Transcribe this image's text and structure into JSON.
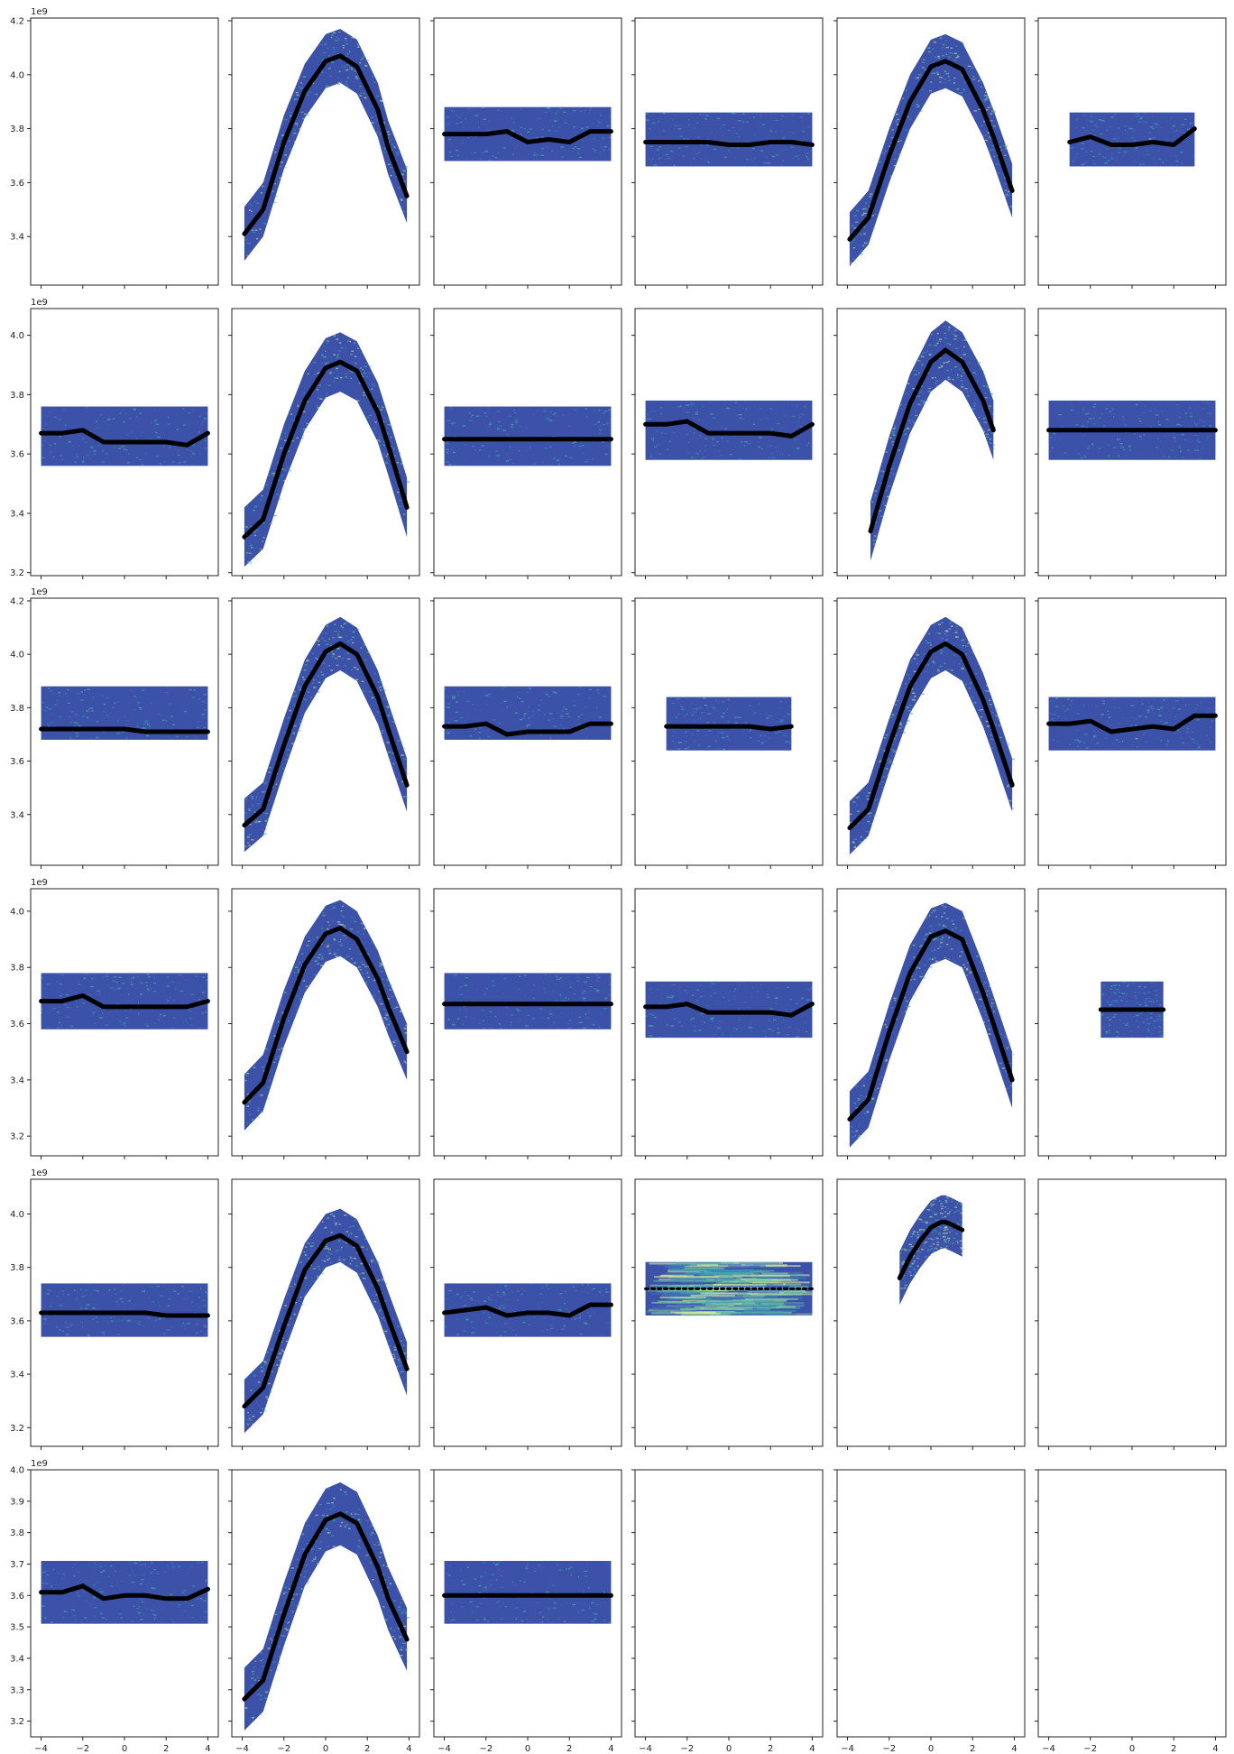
{
  "figure": {
    "colors": {
      "background": "#3c51a8",
      "noise": [
        "#4a66b4",
        "#3b90b8",
        "#48b0a8",
        "#88d0a0",
        "#d8ec9a"
      ],
      "ridge": "#000000",
      "axes": "#222222"
    }
  },
  "chart_data": {
    "type": "heatmap-grid",
    "rows": 6,
    "cols": 6,
    "xlim": [
      -4.5,
      4.5
    ],
    "xticks": [
      -4,
      -2,
      0,
      2,
      4
    ],
    "xtick_labels": [
      "−4",
      "−2",
      "0",
      "2",
      "4"
    ],
    "shared_x_labels_on_row": 5,
    "row_axes": [
      {
        "ylim": [
          3.22,
          4.21
        ],
        "yticks": [
          3.4,
          3.6,
          3.8,
          4.0,
          4.2
        ],
        "ytick_labels": [
          "3.4",
          "3.6",
          "3.8",
          "4.0",
          "4.2"
        ],
        "exponent": "1e9"
      },
      {
        "ylim": [
          3.19,
          4.09
        ],
        "yticks": [
          3.2,
          3.4,
          3.6,
          3.8,
          4.0
        ],
        "ytick_labels": [
          "3.2",
          "3.4",
          "3.6",
          "3.8",
          "4.0"
        ],
        "exponent": "1e9"
      },
      {
        "ylim": [
          3.21,
          4.21
        ],
        "yticks": [
          3.4,
          3.6,
          3.8,
          4.0,
          4.2
        ],
        "ytick_labels": [
          "3.4",
          "3.6",
          "3.8",
          "4.0",
          "4.2"
        ],
        "exponent": "1e9"
      },
      {
        "ylim": [
          3.13,
          4.08
        ],
        "yticks": [
          3.2,
          3.4,
          3.6,
          3.8,
          4.0
        ],
        "ytick_labels": [
          "3.2",
          "3.4",
          "3.6",
          "3.8",
          "4.0"
        ],
        "exponent": "1e9"
      },
      {
        "ylim": [
          3.13,
          4.13
        ],
        "yticks": [
          3.2,
          3.4,
          3.6,
          3.8,
          4.0
        ],
        "ytick_labels": [
          "3.2",
          "3.4",
          "3.6",
          "3.8",
          "4.0"
        ],
        "exponent": "1e9"
      },
      {
        "ylim": [
          3.15,
          4.0
        ],
        "yticks": [
          3.2,
          3.3,
          3.4,
          3.5,
          3.6,
          3.7,
          3.8,
          3.9,
          4.0
        ],
        "ytick_labels": [
          "3.2",
          "3.3",
          "3.4",
          "3.5",
          "3.6",
          "3.7",
          "3.8",
          "3.9",
          "4.0"
        ],
        "exponent": "1e9"
      }
    ],
    "panels": [
      {
        "row": 0,
        "col": 0,
        "kind": "empty"
      },
      {
        "row": 0,
        "col": 1,
        "kind": "arch",
        "x_range": [
          -4,
          4
        ],
        "peak": 4.07,
        "trough": 3.41,
        "band": 0.1,
        "ridge_x": [
          -3.9,
          -3,
          -2,
          -1,
          0,
          0.7,
          1.5,
          2.5,
          3,
          3.9
        ],
        "ridge_y": [
          3.41,
          3.5,
          3.75,
          3.94,
          4.05,
          4.07,
          4.03,
          3.87,
          3.73,
          3.55
        ]
      },
      {
        "row": 0,
        "col": 2,
        "kind": "band",
        "x_range": [
          -4,
          4
        ],
        "y_range": [
          3.68,
          3.88
        ],
        "ridge_x": [
          -4,
          -3,
          -2,
          -1,
          0,
          1,
          2,
          3,
          4
        ],
        "ridge_y": [
          3.78,
          3.78,
          3.78,
          3.79,
          3.75,
          3.76,
          3.75,
          3.79,
          3.79
        ]
      },
      {
        "row": 0,
        "col": 3,
        "kind": "band",
        "x_range": [
          -4,
          4
        ],
        "y_range": [
          3.66,
          3.86
        ],
        "ridge_x": [
          -4,
          -3,
          -2,
          -1,
          0,
          1,
          2,
          3,
          4
        ],
        "ridge_y": [
          3.75,
          3.75,
          3.75,
          3.75,
          3.74,
          3.74,
          3.75,
          3.75,
          3.74
        ]
      },
      {
        "row": 0,
        "col": 4,
        "kind": "arch",
        "x_range": [
          -4,
          4
        ],
        "peak": 4.05,
        "trough": 3.39,
        "band": 0.1,
        "ridge_x": [
          -3.9,
          -3,
          -2,
          -1,
          0,
          0.7,
          1.5,
          2.5,
          3,
          3.9
        ],
        "ridge_y": [
          3.39,
          3.47,
          3.7,
          3.9,
          4.03,
          4.05,
          4.02,
          3.87,
          3.77,
          3.57
        ]
      },
      {
        "row": 0,
        "col": 5,
        "kind": "band",
        "x_range": [
          -3,
          3
        ],
        "y_range": [
          3.66,
          3.86
        ],
        "ridge_x": [
          -3,
          -2,
          -1,
          0,
          1,
          2,
          3
        ],
        "ridge_y": [
          3.75,
          3.77,
          3.74,
          3.74,
          3.75,
          3.74,
          3.8
        ]
      },
      {
        "row": 1,
        "col": 0,
        "kind": "band",
        "x_range": [
          -4,
          4
        ],
        "y_range": [
          3.56,
          3.76
        ],
        "ridge_x": [
          -4,
          -3,
          -2,
          -1,
          0,
          1,
          2,
          3,
          4
        ],
        "ridge_y": [
          3.67,
          3.67,
          3.68,
          3.64,
          3.64,
          3.64,
          3.64,
          3.63,
          3.67
        ]
      },
      {
        "row": 1,
        "col": 1,
        "kind": "arch",
        "x_range": [
          -4,
          4
        ],
        "peak": 3.91,
        "trough": 3.32,
        "band": 0.1,
        "ridge_x": [
          -3.9,
          -3,
          -2,
          -1,
          0,
          0.7,
          1.5,
          2.5,
          3,
          3.9
        ],
        "ridge_y": [
          3.32,
          3.38,
          3.6,
          3.78,
          3.89,
          3.91,
          3.88,
          3.74,
          3.63,
          3.42
        ]
      },
      {
        "row": 1,
        "col": 2,
        "kind": "band",
        "x_range": [
          -4,
          4
        ],
        "y_range": [
          3.56,
          3.76
        ],
        "ridge_x": [
          -4,
          -3,
          -2,
          -1,
          0,
          1,
          2,
          3,
          4
        ],
        "ridge_y": [
          3.65,
          3.65,
          3.65,
          3.65,
          3.65,
          3.65,
          3.65,
          3.65,
          3.65
        ]
      },
      {
        "row": 1,
        "col": 3,
        "kind": "band",
        "x_range": [
          -4,
          4
        ],
        "y_range": [
          3.58,
          3.78
        ],
        "ridge_x": [
          -4,
          -3,
          -2,
          -1,
          0,
          1,
          2,
          3,
          4
        ],
        "ridge_y": [
          3.7,
          3.7,
          3.71,
          3.67,
          3.67,
          3.67,
          3.67,
          3.66,
          3.7
        ]
      },
      {
        "row": 1,
        "col": 4,
        "kind": "arch",
        "x_range": [
          -2.9,
          3
        ],
        "peak": 3.95,
        "trough": 3.34,
        "band": 0.1,
        "ridge_x": [
          -2.9,
          -2,
          -1,
          0,
          0.7,
          1.5,
          2.5,
          3
        ],
        "ridge_y": [
          3.34,
          3.56,
          3.77,
          3.91,
          3.95,
          3.91,
          3.78,
          3.68
        ]
      },
      {
        "row": 1,
        "col": 5,
        "kind": "band",
        "x_range": [
          -4,
          4
        ],
        "y_range": [
          3.58,
          3.78
        ],
        "ridge_x": [
          -4,
          -3,
          -2,
          -1,
          0,
          1,
          2,
          3,
          4
        ],
        "ridge_y": [
          3.68,
          3.68,
          3.68,
          3.68,
          3.68,
          3.68,
          3.68,
          3.68,
          3.68
        ]
      },
      {
        "row": 2,
        "col": 0,
        "kind": "band",
        "x_range": [
          -4,
          4
        ],
        "y_range": [
          3.68,
          3.88
        ],
        "ridge_x": [
          -4,
          -3,
          -2,
          -1,
          0,
          1,
          2,
          3,
          4
        ],
        "ridge_y": [
          3.72,
          3.72,
          3.72,
          3.72,
          3.72,
          3.71,
          3.71,
          3.71,
          3.71
        ]
      },
      {
        "row": 2,
        "col": 1,
        "kind": "arch",
        "x_range": [
          -4,
          4
        ],
        "peak": 4.04,
        "trough": 3.36,
        "band": 0.1,
        "ridge_x": [
          -3.9,
          -3,
          -2,
          -1,
          0,
          0.7,
          1.5,
          2.5,
          3,
          3.9
        ],
        "ridge_y": [
          3.36,
          3.42,
          3.66,
          3.88,
          4.01,
          4.04,
          4.0,
          3.84,
          3.72,
          3.51
        ]
      },
      {
        "row": 2,
        "col": 2,
        "kind": "band",
        "x_range": [
          -4,
          4
        ],
        "y_range": [
          3.68,
          3.88
        ],
        "ridge_x": [
          -4,
          -3,
          -2,
          -1,
          0,
          1,
          2,
          3,
          4
        ],
        "ridge_y": [
          3.73,
          3.73,
          3.74,
          3.7,
          3.71,
          3.71,
          3.71,
          3.74,
          3.74
        ]
      },
      {
        "row": 2,
        "col": 3,
        "kind": "band",
        "x_range": [
          -3,
          3
        ],
        "y_range": [
          3.64,
          3.84
        ],
        "ridge_x": [
          -3,
          -2,
          -1,
          0,
          1,
          2,
          3
        ],
        "ridge_y": [
          3.73,
          3.73,
          3.73,
          3.73,
          3.73,
          3.72,
          3.73
        ]
      },
      {
        "row": 2,
        "col": 4,
        "kind": "arch",
        "x_range": [
          -4,
          4
        ],
        "peak": 4.04,
        "trough": 3.35,
        "band": 0.1,
        "ridge_x": [
          -3.9,
          -3,
          -2,
          -1,
          0,
          0.7,
          1.5,
          2.5,
          3,
          3.9
        ],
        "ridge_y": [
          3.35,
          3.42,
          3.66,
          3.88,
          4.01,
          4.04,
          4.0,
          3.83,
          3.72,
          3.51
        ]
      },
      {
        "row": 2,
        "col": 5,
        "kind": "band",
        "x_range": [
          -4,
          4
        ],
        "y_range": [
          3.64,
          3.84
        ],
        "ridge_x": [
          -4,
          -3,
          -2,
          -1,
          0,
          1,
          2,
          3,
          4
        ],
        "ridge_y": [
          3.74,
          3.74,
          3.75,
          3.71,
          3.72,
          3.73,
          3.72,
          3.77,
          3.77
        ]
      },
      {
        "row": 3,
        "col": 0,
        "kind": "band",
        "x_range": [
          -4,
          4
        ],
        "y_range": [
          3.58,
          3.78
        ],
        "ridge_x": [
          -4,
          -3,
          -2,
          -1,
          0,
          1,
          2,
          3,
          4
        ],
        "ridge_y": [
          3.68,
          3.68,
          3.7,
          3.66,
          3.66,
          3.66,
          3.66,
          3.66,
          3.68
        ]
      },
      {
        "row": 3,
        "col": 1,
        "kind": "arch",
        "x_range": [
          -4,
          4
        ],
        "peak": 3.94,
        "trough": 3.32,
        "band": 0.1,
        "ridge_x": [
          -3.9,
          -3,
          -2,
          -1,
          0,
          0.7,
          1.5,
          2.5,
          3,
          3.9
        ],
        "ridge_y": [
          3.32,
          3.39,
          3.62,
          3.81,
          3.92,
          3.94,
          3.9,
          3.76,
          3.66,
          3.5
        ]
      },
      {
        "row": 3,
        "col": 2,
        "kind": "band",
        "x_range": [
          -4,
          4
        ],
        "y_range": [
          3.58,
          3.78
        ],
        "ridge_x": [
          -4,
          -3,
          -2,
          -1,
          0,
          1,
          2,
          3,
          4
        ],
        "ridge_y": [
          3.67,
          3.67,
          3.67,
          3.67,
          3.67,
          3.67,
          3.67,
          3.67,
          3.67
        ]
      },
      {
        "row": 3,
        "col": 3,
        "kind": "band",
        "x_range": [
          -4,
          4
        ],
        "y_range": [
          3.55,
          3.75
        ],
        "ridge_x": [
          -4,
          -3,
          -2,
          -1,
          0,
          1,
          2,
          3,
          4
        ],
        "ridge_y": [
          3.66,
          3.66,
          3.67,
          3.64,
          3.64,
          3.64,
          3.64,
          3.63,
          3.67
        ]
      },
      {
        "row": 3,
        "col": 4,
        "kind": "arch",
        "x_range": [
          -4,
          4
        ],
        "peak": 3.93,
        "trough": 3.26,
        "band": 0.1,
        "ridge_x": [
          -3.9,
          -3,
          -2,
          -1,
          0,
          0.7,
          1.5,
          2.5,
          3,
          3.9
        ],
        "ridge_y": [
          3.26,
          3.33,
          3.57,
          3.78,
          3.91,
          3.93,
          3.9,
          3.71,
          3.6,
          3.4
        ]
      },
      {
        "row": 3,
        "col": 5,
        "kind": "band",
        "x_range": [
          -1.5,
          1.5
        ],
        "y_range": [
          3.55,
          3.75
        ],
        "ridge_x": [
          -1.5,
          -1,
          -0.5,
          0,
          0.5,
          1,
          1.5
        ],
        "ridge_y": [
          3.65,
          3.65,
          3.65,
          3.65,
          3.65,
          3.65,
          3.65
        ]
      },
      {
        "row": 4,
        "col": 0,
        "kind": "band",
        "x_range": [
          -4,
          4
        ],
        "y_range": [
          3.54,
          3.74
        ],
        "ridge_x": [
          -4,
          -3,
          -2,
          -1,
          0,
          1,
          2,
          3,
          4
        ],
        "ridge_y": [
          3.63,
          3.63,
          3.63,
          3.63,
          3.63,
          3.63,
          3.62,
          3.62,
          3.62
        ]
      },
      {
        "row": 4,
        "col": 1,
        "kind": "arch",
        "x_range": [
          -4,
          4
        ],
        "peak": 3.92,
        "trough": 3.28,
        "band": 0.1,
        "ridge_x": [
          -3.9,
          -3,
          -2,
          -1,
          0,
          0.7,
          1.5,
          2.5,
          3,
          3.9
        ],
        "ridge_y": [
          3.28,
          3.35,
          3.58,
          3.79,
          3.9,
          3.92,
          3.88,
          3.72,
          3.61,
          3.42
        ]
      },
      {
        "row": 4,
        "col": 2,
        "kind": "band",
        "x_range": [
          -4,
          4
        ],
        "y_range": [
          3.54,
          3.74
        ],
        "ridge_x": [
          -4,
          -3,
          -2,
          -1,
          0,
          1,
          2,
          3,
          4
        ],
        "ridge_y": [
          3.63,
          3.64,
          3.65,
          3.62,
          3.63,
          3.63,
          3.62,
          3.66,
          3.66
        ]
      },
      {
        "row": 4,
        "col": 3,
        "kind": "band",
        "x_range": [
          -4,
          4
        ],
        "y_range": [
          3.62,
          3.82
        ],
        "dotted": true,
        "ridge_x": [
          -4,
          -3,
          -2,
          -1,
          0,
          1,
          2,
          3,
          4
        ],
        "ridge_y": [
          3.72,
          3.72,
          3.72,
          3.72,
          3.72,
          3.72,
          3.72,
          3.72,
          3.72
        ]
      },
      {
        "row": 4,
        "col": 4,
        "kind": "arch",
        "x_range": [
          -1.5,
          1.5
        ],
        "peak": 3.97,
        "trough": 3.76,
        "band": 0.1,
        "ridge_x": [
          -1.5,
          -1,
          -0.5,
          0,
          0.5,
          0.7,
          1,
          1.5
        ],
        "ridge_y": [
          3.76,
          3.84,
          3.9,
          3.95,
          3.97,
          3.97,
          3.96,
          3.94
        ]
      },
      {
        "row": 4,
        "col": 5,
        "kind": "empty"
      },
      {
        "row": 5,
        "col": 0,
        "kind": "band",
        "x_range": [
          -4,
          4
        ],
        "y_range": [
          3.51,
          3.71
        ],
        "ridge_x": [
          -4,
          -3,
          -2,
          -1,
          0,
          1,
          2,
          3,
          4
        ],
        "ridge_y": [
          3.61,
          3.61,
          3.63,
          3.59,
          3.6,
          3.6,
          3.59,
          3.59,
          3.62
        ]
      },
      {
        "row": 5,
        "col": 1,
        "kind": "arch",
        "x_range": [
          -4,
          4
        ],
        "peak": 3.86,
        "trough": 3.27,
        "band": 0.1,
        "ridge_x": [
          -3.9,
          -3,
          -2,
          -1,
          0,
          0.7,
          1.5,
          2.5,
          3,
          3.9
        ],
        "ridge_y": [
          3.27,
          3.33,
          3.54,
          3.73,
          3.84,
          3.86,
          3.83,
          3.69,
          3.59,
          3.46
        ]
      },
      {
        "row": 5,
        "col": 2,
        "kind": "band",
        "x_range": [
          -4,
          4
        ],
        "y_range": [
          3.51,
          3.71
        ],
        "ridge_x": [
          -4,
          -3,
          -2,
          -1,
          0,
          1,
          2,
          3,
          4
        ],
        "ridge_y": [
          3.6,
          3.6,
          3.6,
          3.6,
          3.6,
          3.6,
          3.6,
          3.6,
          3.6
        ]
      },
      {
        "row": 5,
        "col": 3,
        "kind": "empty"
      },
      {
        "row": 5,
        "col": 4,
        "kind": "empty"
      },
      {
        "row": 5,
        "col": 5,
        "kind": "empty"
      }
    ]
  }
}
